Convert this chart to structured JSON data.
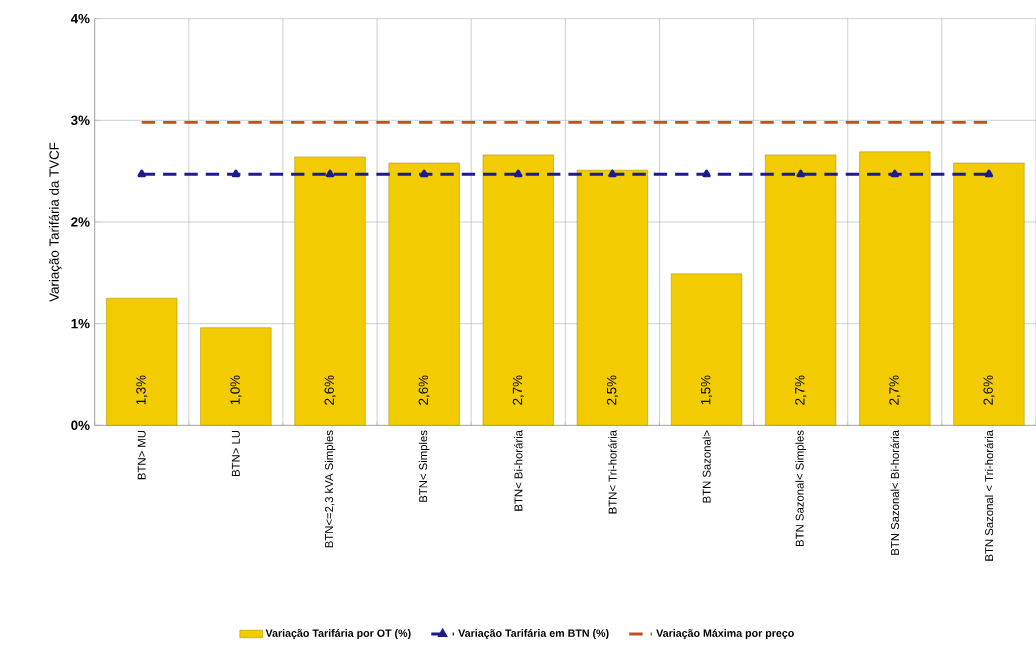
{
  "chart_data": {
    "type": "bar",
    "ylabel": "Variação Tarifária da TVCF",
    "categories": [
      "BTN> MU",
      "BTN> LU",
      "BTN<=2,3 kVA Simples",
      "BTN< Simples",
      "BTN< Bi-horária",
      "BTN< Tri-horária",
      "BTN Sazonal>",
      "BTN Sazonal< Simples",
      "BTN Sazonal< Bi-horária",
      "BTN Sazonal < Tri-horária"
    ],
    "series": [
      {
        "name": "Variação Tarifária por OT (%)",
        "color": "#f2cc00",
        "values": [
          1.25,
          0.96,
          2.64,
          2.58,
          2.66,
          2.51,
          1.49,
          2.66,
          2.69,
          2.58
        ],
        "value_labels": [
          "1,3%",
          "1,0%",
          "2,6%",
          "2,6%",
          "2,7%",
          "2,5%",
          "1,5%",
          "2,7%",
          "2,7%",
          "2,6%"
        ]
      },
      {
        "name": "Variação Tarifária em BTN (%)",
        "type": "line",
        "color": "#1c1c8c",
        "marker": "triangle",
        "line_style": "dashed",
        "values": [
          2.47,
          2.47,
          2.47,
          2.47,
          2.47,
          2.47,
          2.47,
          2.47,
          2.47,
          2.47
        ]
      },
      {
        "name": "Variação Máxima por preço",
        "type": "line",
        "color": "#c0501f",
        "marker": "none",
        "line_style": "dashed",
        "values": [
          2.98,
          2.98,
          2.98,
          2.98,
          2.98,
          2.98,
          2.98,
          2.98,
          2.98,
          2.98
        ]
      }
    ],
    "ylim": [
      0,
      4
    ],
    "yticks": [
      {
        "value": 0,
        "label": "0%"
      },
      {
        "value": 1,
        "label": "1%"
      },
      {
        "value": 2,
        "label": "2%"
      },
      {
        "value": 3,
        "label": "3%"
      },
      {
        "value": 4,
        "label": "4%"
      }
    ],
    "grid": true,
    "legend": "bottom"
  }
}
